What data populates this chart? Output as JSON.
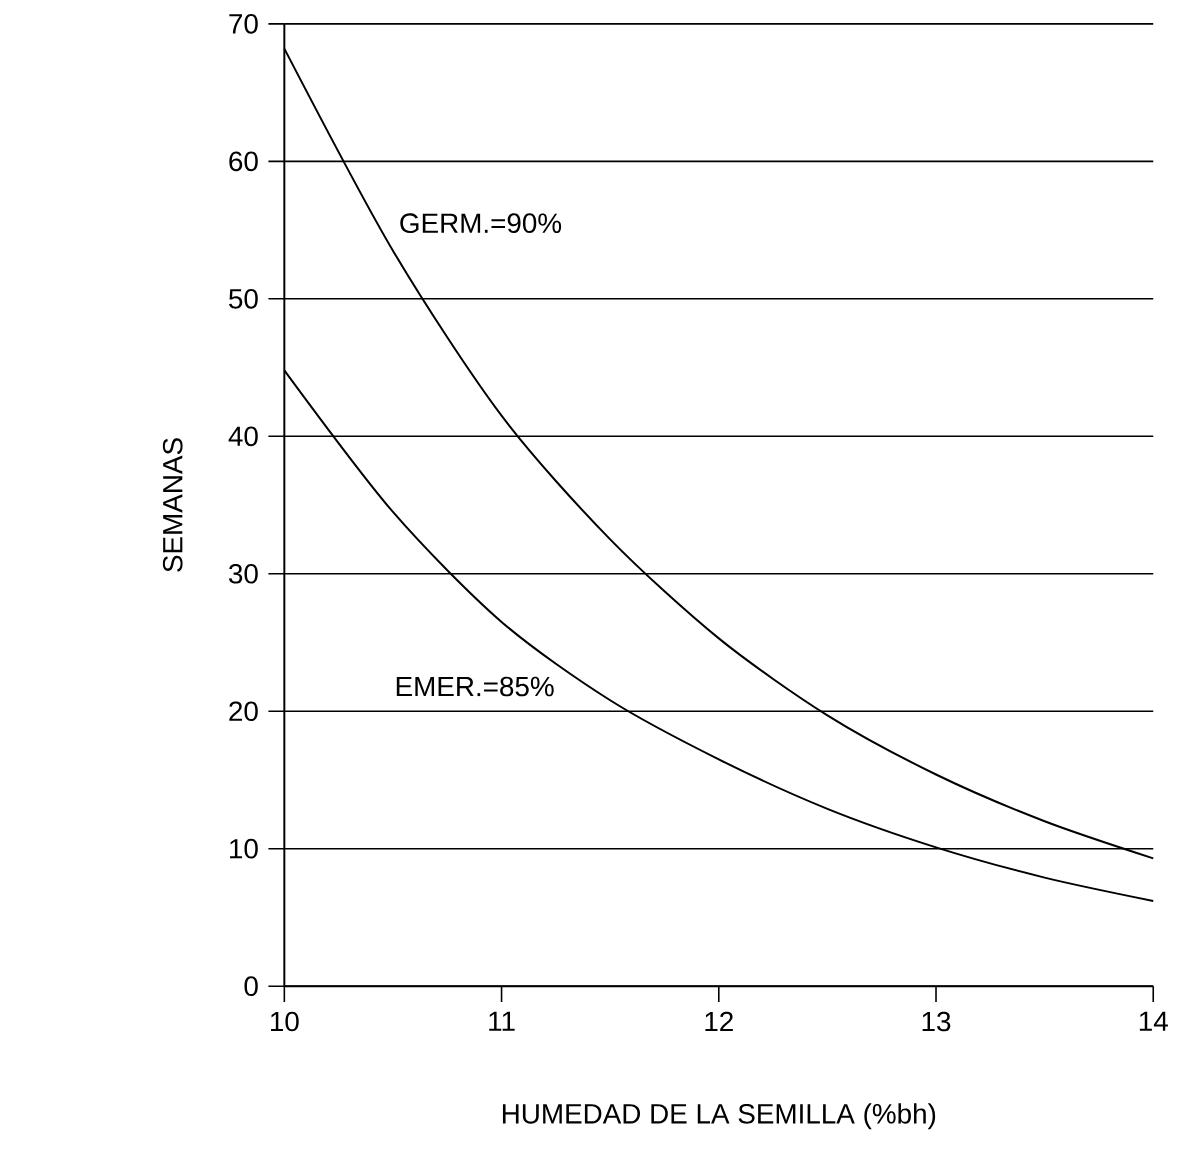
{
  "chart_data": {
    "type": "line",
    "xlabel": "HUMEDAD DE LA SEMILLA (%bh)",
    "ylabel": "SEMANAS",
    "x": [
      10,
      10.5,
      11,
      11.5,
      12,
      12.5,
      13,
      13.5,
      14
    ],
    "series": [
      {
        "name": "GERM.=90%",
        "color": "#000000",
        "values": [
          68.2,
          53.5,
          41.5,
          32.5,
          25.3,
          19.7,
          15.4,
          12.0,
          9.3
        ]
      },
      {
        "name": "EMER.=85%",
        "color": "#000000",
        "values": [
          44.8,
          34.5,
          26.5,
          20.8,
          16.5,
          12.9,
          10.1,
          7.9,
          6.2
        ]
      }
    ],
    "xlim": [
      10,
      14
    ],
    "ylim": [
      0,
      70
    ],
    "xticks": [
      10,
      11,
      12,
      13,
      14
    ],
    "yticks": [
      0,
      10,
      20,
      30,
      40,
      50,
      60,
      70
    ],
    "grid": "y",
    "legend": false,
    "marker": "none",
    "line_style": "solid"
  }
}
